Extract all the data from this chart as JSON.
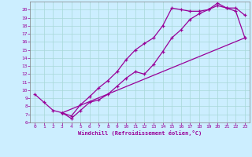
{
  "xlabel": "Windchill (Refroidissement éolien,°C)",
  "background_color": "#cceeff",
  "line_color": "#990099",
  "xlim": [
    -0.5,
    23.5
  ],
  "ylim": [
    6,
    21
  ],
  "xticks": [
    0,
    1,
    2,
    3,
    4,
    5,
    6,
    7,
    8,
    9,
    10,
    11,
    12,
    13,
    14,
    15,
    16,
    17,
    18,
    19,
    20,
    21,
    22,
    23
  ],
  "yticks": [
    6,
    7,
    8,
    9,
    10,
    11,
    12,
    13,
    14,
    15,
    16,
    17,
    18,
    19,
    20
  ],
  "line1_x": [
    0,
    1,
    2,
    3,
    4,
    5,
    6,
    7,
    8,
    9,
    10,
    11,
    12,
    13,
    14,
    15,
    16,
    17,
    18,
    19,
    20,
    21,
    22,
    23
  ],
  "line1_y": [
    9.5,
    8.5,
    7.5,
    7.2,
    6.8,
    8.2,
    9.2,
    10.3,
    11.2,
    12.3,
    13.8,
    15.0,
    15.8,
    16.5,
    18.0,
    20.2,
    20.0,
    19.8,
    19.8,
    20.0,
    20.8,
    20.2,
    20.2,
    19.3
  ],
  "line2_x": [
    3,
    4,
    5,
    6,
    7,
    8,
    9,
    10,
    11,
    12,
    13,
    14,
    15,
    16,
    17,
    18,
    19,
    20,
    21,
    22,
    23
  ],
  "line2_y": [
    7.2,
    6.5,
    7.5,
    8.5,
    8.8,
    9.5,
    10.5,
    11.5,
    12.3,
    12.0,
    13.2,
    14.8,
    16.5,
    17.5,
    18.8,
    19.5,
    20.0,
    20.5,
    20.2,
    19.8,
    16.5
  ],
  "line3_x": [
    3,
    23
  ],
  "line3_y": [
    7.2,
    16.5
  ],
  "marker": "+"
}
